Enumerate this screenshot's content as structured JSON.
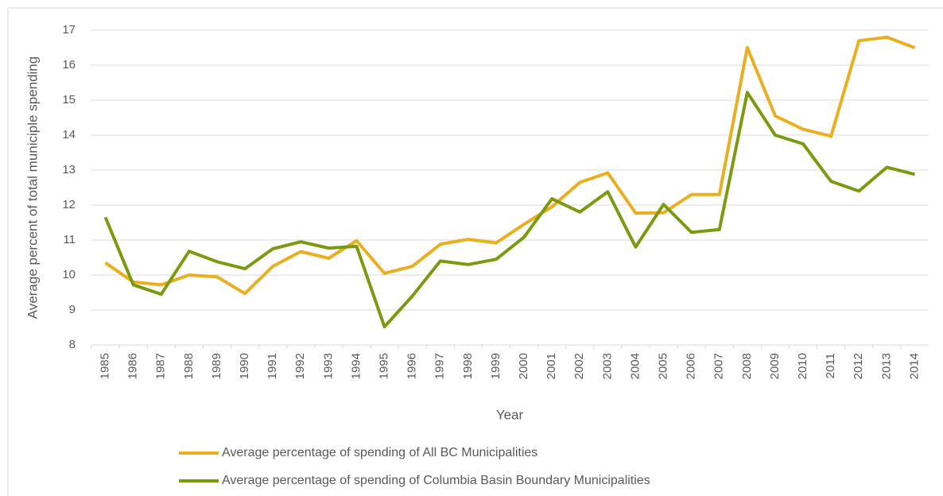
{
  "chart_data": {
    "type": "line",
    "y_label": "Average percent of total municiple spending",
    "x_label": "Year",
    "categories": [
      "1985",
      "1986",
      "1987",
      "1988",
      "1989",
      "1990",
      "1991",
      "1992",
      "1993",
      "1994",
      "1995",
      "1996",
      "1997",
      "1998",
      "1999",
      "2000",
      "2001",
      "2002",
      "2003",
      "2004",
      "2005",
      "2006",
      "2007",
      "2008",
      "2009",
      "2010",
      "2011",
      "2012",
      "2013",
      "2014"
    ],
    "series": [
      {
        "name": "Average percentage of spending of All BC Municipalities",
        "color": "#eaae1f",
        "values": [
          10.35,
          9.8,
          9.72,
          10.0,
          9.95,
          9.47,
          10.25,
          10.67,
          10.48,
          10.98,
          10.05,
          10.25,
          10.88,
          11.02,
          10.92,
          11.45,
          11.95,
          12.65,
          12.92,
          11.77,
          11.78,
          12.3,
          12.3,
          16.5,
          14.55,
          14.17,
          13.97,
          16.7,
          16.8,
          16.5
        ]
      },
      {
        "name": "Average percentage of spending of Columbia Basin Boundary Municipalities",
        "color": "#7a9a0f",
        "values": [
          11.65,
          9.72,
          9.45,
          10.68,
          10.38,
          10.18,
          10.75,
          10.95,
          10.77,
          10.82,
          8.52,
          9.4,
          10.4,
          10.3,
          10.45,
          11.08,
          12.18,
          11.8,
          12.38,
          10.8,
          12.02,
          11.22,
          11.3,
          15.22,
          14.0,
          13.75,
          12.68,
          12.4,
          13.08,
          12.88
        ]
      }
    ],
    "ylim": [
      8,
      17
    ],
    "yticks": [
      8,
      9,
      10,
      11,
      12,
      13,
      14,
      15,
      16,
      17
    ],
    "grid": true,
    "legend": "bottom"
  }
}
